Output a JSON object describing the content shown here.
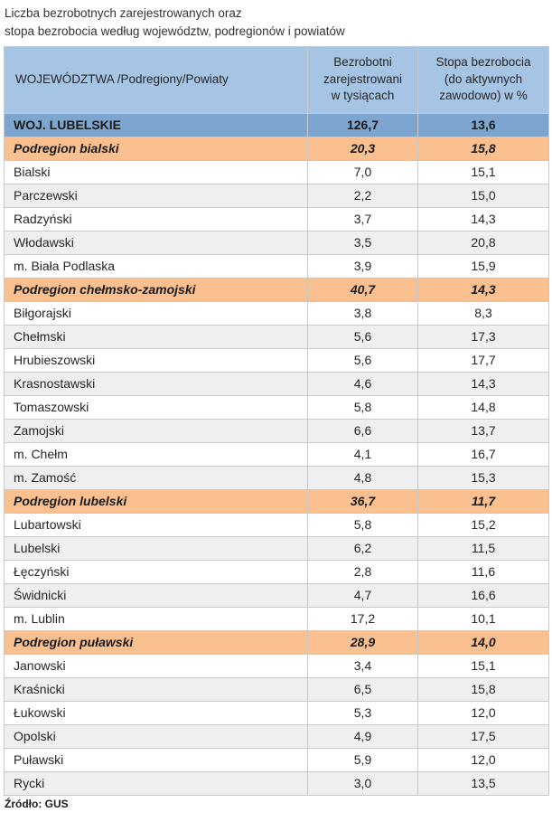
{
  "title": {
    "line1": "Liczba bezrobotnych zarejestrowanych oraz",
    "line2": "stopa bezrobocia według województw, podregionów i powiatów"
  },
  "table": {
    "columns": [
      "WOJEWÓDZTWA /Podregiony/Powiaty",
      "Bezrobotni\nzarejestrowani\nw tysiącach",
      "Stopa bezrobocia\n(do aktywnych\nzawodowo) w %"
    ],
    "rows": [
      {
        "name": "WOJ. LUBELSKIE",
        "unemployed": "126,7",
        "rate": "13,6",
        "type": "voivodeship"
      },
      {
        "name": "Podregion bialski",
        "unemployed": "20,3",
        "rate": "15,8",
        "type": "subregion"
      },
      {
        "name": "Bialski",
        "unemployed": "7,0",
        "rate": "15,1",
        "type": "county"
      },
      {
        "name": "Parczewski",
        "unemployed": "2,2",
        "rate": "15,0",
        "type": "county"
      },
      {
        "name": "Radzyński",
        "unemployed": "3,7",
        "rate": "14,3",
        "type": "county"
      },
      {
        "name": "Włodawski",
        "unemployed": "3,5",
        "rate": "20,8",
        "type": "county"
      },
      {
        "name": "m. Biała Podlaska",
        "unemployed": "3,9",
        "rate": "15,9",
        "type": "county"
      },
      {
        "name": "Podregion chełmsko-zamojski",
        "unemployed": "40,7",
        "rate": "14,3",
        "type": "subregion"
      },
      {
        "name": "Biłgorajski",
        "unemployed": "3,8",
        "rate": "8,3",
        "type": "county"
      },
      {
        "name": "Chełmski",
        "unemployed": "5,6",
        "rate": "17,3",
        "type": "county"
      },
      {
        "name": "Hrubieszowski",
        "unemployed": "5,6",
        "rate": "17,7",
        "type": "county"
      },
      {
        "name": "Krasnostawski",
        "unemployed": "4,6",
        "rate": "14,3",
        "type": "county"
      },
      {
        "name": "Tomaszowski",
        "unemployed": "5,8",
        "rate": "14,8",
        "type": "county"
      },
      {
        "name": "Zamojski",
        "unemployed": "6,6",
        "rate": "13,7",
        "type": "county"
      },
      {
        "name": "m. Chełm",
        "unemployed": "4,1",
        "rate": "16,7",
        "type": "county"
      },
      {
        "name": "m. Zamość",
        "unemployed": "4,8",
        "rate": "15,3",
        "type": "county"
      },
      {
        "name": "Podregion lubelski",
        "unemployed": "36,7",
        "rate": "11,7",
        "type": "subregion"
      },
      {
        "name": "Lubartowski",
        "unemployed": "5,8",
        "rate": "15,2",
        "type": "county"
      },
      {
        "name": "Lubelski",
        "unemployed": "6,2",
        "rate": "11,5",
        "type": "county"
      },
      {
        "name": "Łęczyński",
        "unemployed": "2,8",
        "rate": "11,6",
        "type": "county"
      },
      {
        "name": "Świdnicki",
        "unemployed": "4,7",
        "rate": "16,6",
        "type": "county"
      },
      {
        "name": "m. Lublin",
        "unemployed": "17,2",
        "rate": "10,1",
        "type": "county"
      },
      {
        "name": "Podregion puławski",
        "unemployed": "28,9",
        "rate": "14,0",
        "type": "subregion"
      },
      {
        "name": "Janowski",
        "unemployed": "3,4",
        "rate": "15,1",
        "type": "county"
      },
      {
        "name": "Kraśnicki",
        "unemployed": "6,5",
        "rate": "15,8",
        "type": "county"
      },
      {
        "name": "Łukowski",
        "unemployed": "5,3",
        "rate": "12,0",
        "type": "county"
      },
      {
        "name": "Opolski",
        "unemployed": "4,9",
        "rate": "17,5",
        "type": "county"
      },
      {
        "name": "Puławski",
        "unemployed": "5,9",
        "rate": "12,0",
        "type": "county"
      },
      {
        "name": "Rycki",
        "unemployed": "3,0",
        "rate": "13,5",
        "type": "county"
      }
    ]
  },
  "footer": {
    "source": "Źródło: GUS"
  },
  "colors": {
    "header_blue": "#a6c4e3",
    "voivodeship_blue": "#7ca6d0",
    "subregion_orange": "#fac090",
    "stripe_gray": "#efefef"
  }
}
